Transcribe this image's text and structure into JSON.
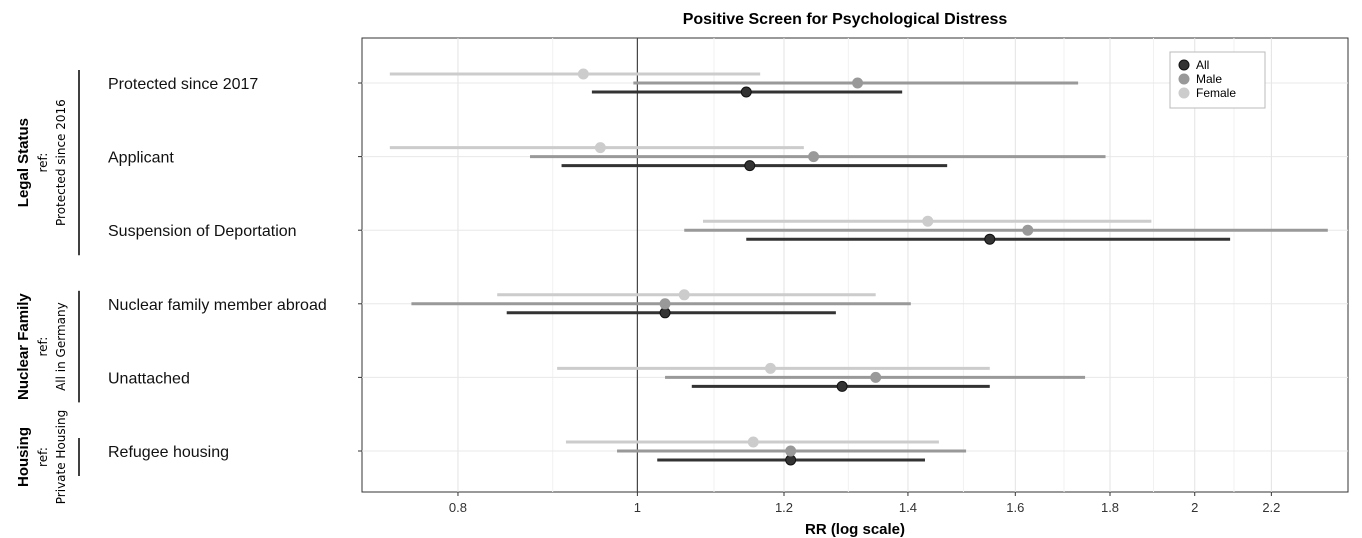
{
  "chart_data": {
    "type": "forest",
    "title": "Positive Screen for Psychological Distress",
    "xlabel": "RR (log scale)",
    "x_scale": "log",
    "xlim": [
      0.71,
      2.42
    ],
    "x_ticks": [
      0.8,
      1,
      1.2,
      1.4,
      1.6,
      1.8,
      2,
      2.2
    ],
    "x_tick_labels": [
      "0.8",
      "1",
      "1.2",
      "1.4",
      "1.6",
      "1.8",
      "2",
      "2.2"
    ],
    "reference_line": 1,
    "grid": true,
    "legend": {
      "position": "top-right",
      "entries": [
        {
          "name": "All",
          "color": "#333333"
        },
        {
          "name": "Male",
          "color": "#999999"
        },
        {
          "name": "Female",
          "color": "#cccccc"
        }
      ]
    },
    "groups": [
      {
        "label": "Legal Status",
        "ref_line1": "ref:",
        "ref_line2": "Protected since 2016",
        "rows": [
          0,
          1,
          2
        ]
      },
      {
        "label": "Nuclear Family",
        "ref_line1": "ref:",
        "ref_line2": "All in Germany",
        "rows": [
          3,
          4
        ]
      },
      {
        "label": "Housing",
        "ref_line1": "ref:",
        "ref_line2": "Private Housing",
        "rows": [
          5
        ]
      }
    ],
    "categories": [
      "Protected since 2017",
      "Applicant",
      "Suspension of Deportation",
      "Nuclear family member abroad",
      "Unattached",
      "Refugee housing"
    ],
    "series": [
      {
        "name": "All",
        "color": "#333333",
        "estimates": [
          1.145,
          1.15,
          1.55,
          1.035,
          1.29,
          1.21
        ],
        "lower": [
          0.945,
          0.91,
          1.145,
          0.85,
          1.07,
          1.025
        ],
        "upper": [
          1.39,
          1.47,
          2.09,
          1.28,
          1.55,
          1.43
        ]
      },
      {
        "name": "Male",
        "color": "#999999",
        "estimates": [
          1.315,
          1.245,
          1.625,
          1.035,
          1.345,
          1.21
        ],
        "lower": [
          0.995,
          0.875,
          1.06,
          0.755,
          1.035,
          0.975
        ],
        "upper": [
          1.73,
          1.79,
          2.36,
          1.405,
          1.745,
          1.505
        ]
      },
      {
        "name": "Female",
        "color": "#cccccc",
        "estimates": [
          0.935,
          0.955,
          1.435,
          1.06,
          1.18,
          1.155
        ],
        "lower": [
          0.735,
          0.735,
          1.085,
          0.84,
          0.905,
          0.915
        ],
        "upper": [
          1.165,
          1.23,
          1.895,
          1.345,
          1.55,
          1.455
        ]
      }
    ]
  }
}
